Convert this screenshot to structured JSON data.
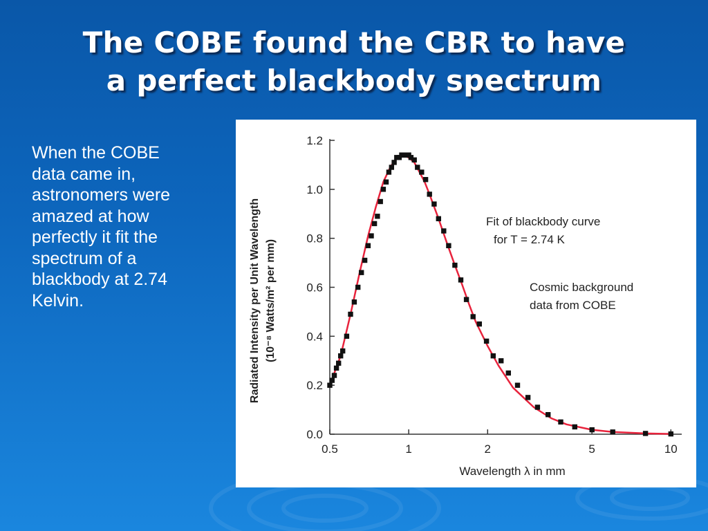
{
  "slide": {
    "title_lines": [
      "The COBE found the CBR to have",
      "a perfect blackbody spectrum"
    ],
    "body_lines": [
      "When the COBE",
      "data came in,",
      "astronomers were",
      "amazed at how",
      "perfectly it fit the",
      "spectrum of a",
      "blackbody at 2.74",
      "Kelvin."
    ],
    "colors": {
      "background": "#0d66bd",
      "title": "#ffffff",
      "text": "#ffffff"
    }
  },
  "chart_data": {
    "type": "line",
    "title": "",
    "xlabel": "Wavelength λ in mm",
    "ylabel_lines": [
      "Radiated Intensity per Unit Wavelength",
      "(10⁻⁸ Watts/m² per mm)"
    ],
    "x_scale": "log",
    "xlim": [
      0.5,
      11
    ],
    "ylim": [
      0,
      1.2
    ],
    "x_ticks": [
      0.5,
      1,
      2,
      5,
      10
    ],
    "x_tick_labels": [
      "0.5",
      "1",
      "2",
      "5",
      "10"
    ],
    "y_ticks": [
      0,
      0.2,
      0.4,
      0.6,
      0.8,
      1.0,
      1.2
    ],
    "y_tick_labels": [
      "0.0",
      "0.2",
      "0.4",
      "0.6",
      "0.8",
      "1.0",
      "1.2"
    ],
    "grid": false,
    "annotations": [
      {
        "lines": [
          "Fit of blackbody curve",
          "for T = 2.74 K"
        ],
        "refers_to": "fit"
      },
      {
        "lines": [
          "Cosmic background",
          "data from COBE"
        ],
        "refers_to": "data"
      }
    ],
    "series": [
      {
        "style": "line",
        "color": "#e8233c",
        "x": [
          0.5,
          0.55,
          0.6,
          0.65,
          0.7,
          0.75,
          0.8,
          0.85,
          0.9,
          0.95,
          1.0,
          1.05,
          1.1,
          1.15,
          1.2,
          1.3,
          1.4,
          1.5,
          1.6,
          1.7,
          1.8,
          2.0,
          2.2,
          2.5,
          3.0,
          3.5,
          4.0,
          5.0,
          6.0,
          8.0,
          10.0
        ],
        "y": [
          0.2,
          0.32,
          0.49,
          0.66,
          0.81,
          0.93,
          1.03,
          1.09,
          1.13,
          1.14,
          1.13,
          1.11,
          1.07,
          1.03,
          0.98,
          0.88,
          0.78,
          0.69,
          0.61,
          0.53,
          0.46,
          0.36,
          0.28,
          0.19,
          0.11,
          0.065,
          0.04,
          0.018,
          0.009,
          0.003,
          0.001
        ]
      },
      {
        "style": "markers",
        "color": "#111111",
        "x": [
          0.5,
          0.51,
          0.52,
          0.53,
          0.54,
          0.55,
          0.56,
          0.58,
          0.6,
          0.62,
          0.64,
          0.66,
          0.68,
          0.7,
          0.72,
          0.74,
          0.76,
          0.78,
          0.8,
          0.82,
          0.84,
          0.86,
          0.88,
          0.9,
          0.92,
          0.94,
          0.96,
          0.98,
          1.0,
          1.02,
          1.05,
          1.08,
          1.12,
          1.16,
          1.2,
          1.25,
          1.3,
          1.36,
          1.42,
          1.5,
          1.58,
          1.66,
          1.76,
          1.86,
          1.98,
          2.1,
          2.25,
          2.4,
          2.6,
          2.85,
          3.1,
          3.4,
          3.8,
          4.3,
          5.0,
          6.0,
          8.0,
          10.0
        ],
        "y": [
          0.2,
          0.22,
          0.24,
          0.27,
          0.29,
          0.32,
          0.34,
          0.4,
          0.49,
          0.54,
          0.6,
          0.66,
          0.71,
          0.77,
          0.81,
          0.86,
          0.89,
          0.95,
          1.0,
          1.03,
          1.07,
          1.09,
          1.11,
          1.13,
          1.13,
          1.14,
          1.14,
          1.14,
          1.14,
          1.13,
          1.12,
          1.09,
          1.07,
          1.04,
          0.98,
          0.94,
          0.88,
          0.83,
          0.77,
          0.69,
          0.63,
          0.55,
          0.48,
          0.45,
          0.38,
          0.32,
          0.3,
          0.25,
          0.2,
          0.15,
          0.11,
          0.08,
          0.05,
          0.03,
          0.018,
          0.009,
          0.003,
          0.001
        ]
      }
    ]
  }
}
